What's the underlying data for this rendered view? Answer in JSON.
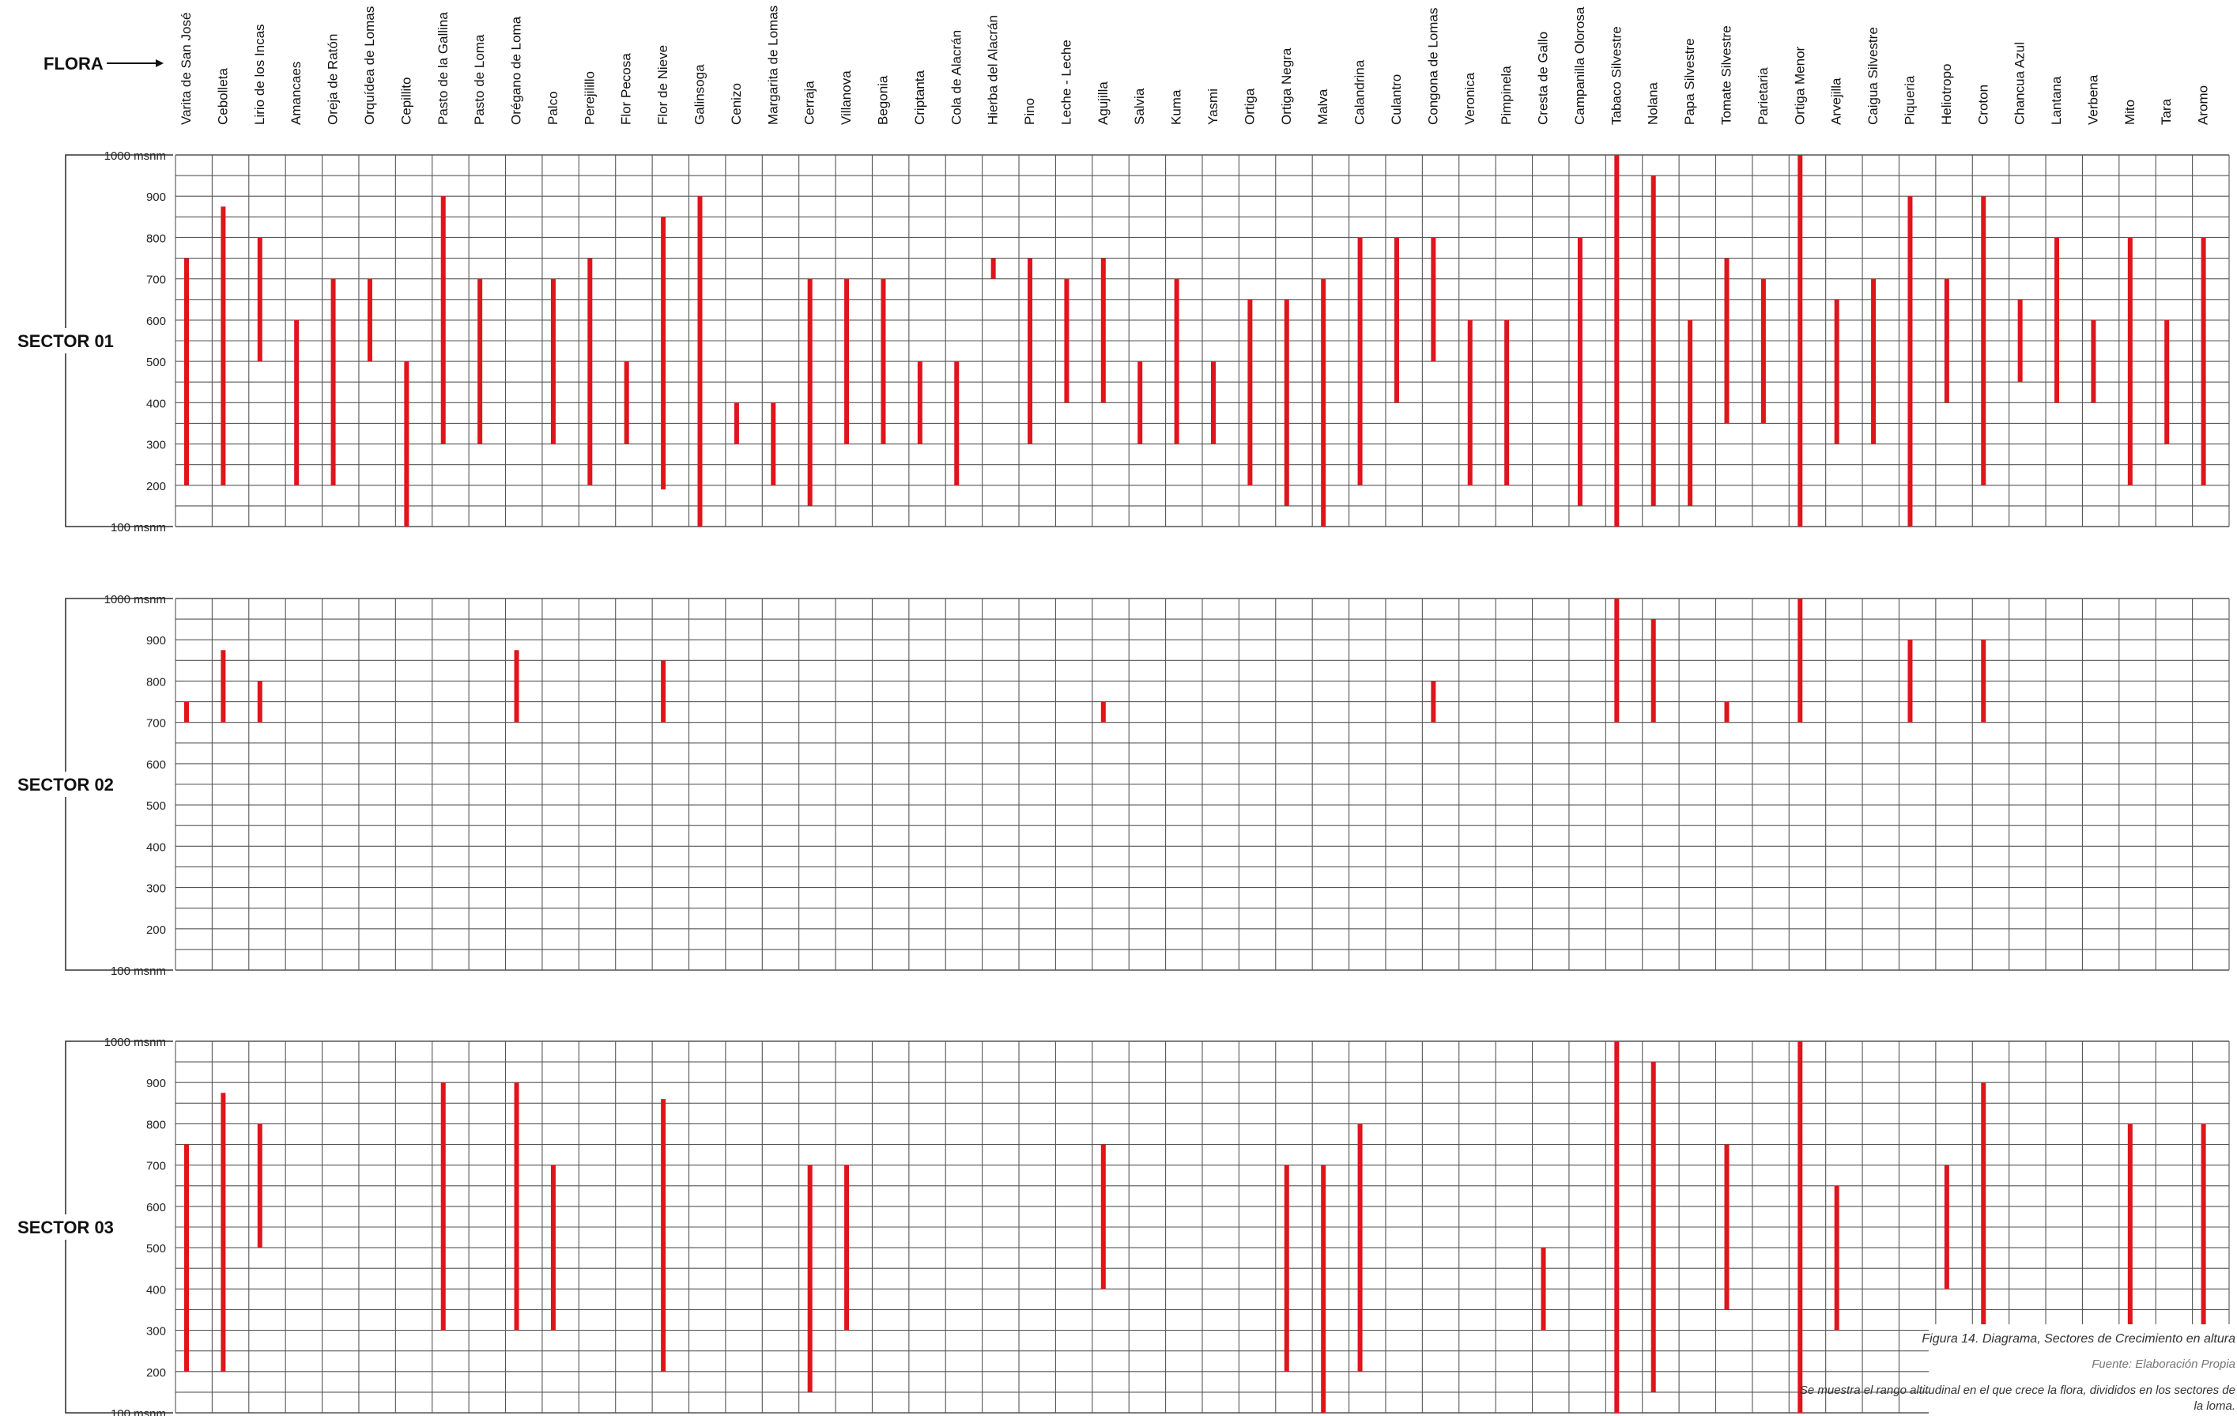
{
  "flora_label": "FLORA",
  "caption": {
    "figure": "Figura 14. Diagrama, Sectores de Crecimiento en altura",
    "source": "Fuente: Elaboración Propia",
    "note": "Se muestra el rango altitudinal en el que crece la flora, divididos en los sectores de la loma."
  },
  "colors": {
    "bar": "#e0141c",
    "grid": "#555555"
  },
  "chart_data": {
    "type": "range-bar",
    "categories": [
      "Varita de San José",
      "Cebolleta",
      "Lirio de los Incas",
      "Amancaes",
      "Oreja de Ratón",
      "Orquídea de Lomas",
      "Cepillito",
      "Pasto de la Gallina",
      "Pasto de Loma",
      "Orégano de Loma",
      "Palco",
      "Perejilillo",
      "Flor Pecosa",
      "Flor de Nieve",
      "Galinsoga",
      "Cenizo",
      "Margarita de Lomas",
      "Cerraja",
      "Villanova",
      "Begonia",
      "Criptanta",
      "Cola de Alacrán",
      "Hierba del Alacrán",
      "Pino",
      "Leche - Leche",
      "Agujilla",
      "Salvia",
      "Kuma",
      "Yasmi",
      "Ortiga",
      "Ortiga Negra",
      "Malva",
      "Calandrina",
      "Culantro",
      "Congona de Lomas",
      "Veronica",
      "Pimpinela",
      "Cresta de Gallo",
      "Campanilla Olorosa",
      "Tabaco Silvestre",
      "Nolana",
      "Papa Silvestre",
      "Tomate Silvestre",
      "Parietaria",
      "Ortiga Menor",
      "Arvejilla",
      "Caigua Silvestre",
      "Piqueria",
      "Heliotropo",
      "Croton",
      "Chancua Azul",
      "Lantana",
      "Verbena",
      "Mito",
      "Tara",
      "Aromo"
    ],
    "ylim": [
      100,
      1000
    ],
    "y_ticks": [
      "1000 msnm",
      "900",
      "800",
      "700",
      "600",
      "500",
      "400",
      "300",
      "200",
      "100 msnm"
    ],
    "panels": [
      {
        "name": "SECTOR 01",
        "ranges": [
          [
            200,
            750
          ],
          [
            200,
            875
          ],
          [
            500,
            800
          ],
          [
            200,
            600
          ],
          [
            200,
            700
          ],
          [
            500,
            700
          ],
          [
            100,
            500
          ],
          [
            300,
            900
          ],
          [
            300,
            700
          ],
          null,
          [
            300,
            700
          ],
          [
            200,
            750
          ],
          [
            300,
            500
          ],
          [
            190,
            850
          ],
          [
            100,
            900
          ],
          [
            300,
            400
          ],
          [
            200,
            400
          ],
          [
            150,
            700
          ],
          [
            300,
            700
          ],
          [
            300,
            700
          ],
          [
            300,
            500
          ],
          [
            200,
            500
          ],
          [
            700,
            750
          ],
          [
            300,
            750
          ],
          [
            400,
            700
          ],
          [
            400,
            750
          ],
          [
            300,
            500
          ],
          [
            300,
            700
          ],
          [
            300,
            500
          ],
          [
            200,
            650
          ],
          [
            150,
            650
          ],
          [
            100,
            700
          ],
          [
            200,
            800
          ],
          [
            400,
            800
          ],
          [
            500,
            800
          ],
          [
            200,
            600
          ],
          [
            200,
            600
          ],
          null,
          [
            150,
            800
          ],
          [
            100,
            1000
          ],
          [
            150,
            950
          ],
          [
            150,
            600
          ],
          [
            350,
            750
          ],
          [
            350,
            700
          ],
          [
            100,
            1000
          ],
          [
            300,
            650
          ],
          [
            300,
            700
          ],
          [
            100,
            900
          ],
          [
            400,
            700
          ],
          [
            200,
            900
          ],
          [
            450,
            650
          ],
          [
            400,
            800
          ],
          [
            400,
            600
          ],
          [
            200,
            800
          ],
          [
            300,
            600
          ],
          [
            200,
            800
          ]
        ]
      },
      {
        "name": "SECTOR 02",
        "ranges": [
          [
            700,
            750
          ],
          [
            700,
            875
          ],
          [
            700,
            800
          ],
          null,
          null,
          null,
          null,
          null,
          null,
          [
            700,
            875
          ],
          null,
          null,
          null,
          [
            700,
            850
          ],
          null,
          null,
          null,
          null,
          null,
          null,
          null,
          null,
          null,
          null,
          null,
          [
            700,
            750
          ],
          null,
          null,
          null,
          null,
          null,
          null,
          null,
          null,
          [
            700,
            800
          ],
          null,
          null,
          null,
          null,
          [
            700,
            1000
          ],
          [
            700,
            950
          ],
          null,
          [
            700,
            750
          ],
          null,
          [
            700,
            1000
          ],
          null,
          null,
          [
            700,
            900
          ],
          null,
          [
            700,
            900
          ],
          null,
          null,
          null,
          null,
          null,
          null
        ]
      },
      {
        "name": "SECTOR 03",
        "ranges": [
          [
            200,
            750
          ],
          [
            200,
            875
          ],
          [
            500,
            800
          ],
          null,
          null,
          null,
          null,
          [
            300,
            900
          ],
          null,
          [
            300,
            900
          ],
          [
            300,
            700
          ],
          null,
          null,
          [
            200,
            860
          ],
          null,
          null,
          null,
          [
            150,
            700
          ],
          [
            300,
            700
          ],
          null,
          null,
          null,
          null,
          null,
          null,
          [
            400,
            750
          ],
          null,
          null,
          null,
          null,
          [
            200,
            700
          ],
          [
            100,
            700
          ],
          [
            200,
            800
          ],
          null,
          null,
          null,
          null,
          [
            300,
            500
          ],
          null,
          [
            100,
            1000
          ],
          [
            150,
            950
          ],
          null,
          [
            350,
            750
          ],
          null,
          [
            100,
            1000
          ],
          [
            300,
            650
          ],
          null,
          null,
          [
            400,
            700
          ],
          [
            300,
            900
          ],
          null,
          null,
          null,
          [
            300,
            800
          ],
          null,
          [
            300,
            800
          ]
        ]
      }
    ]
  }
}
